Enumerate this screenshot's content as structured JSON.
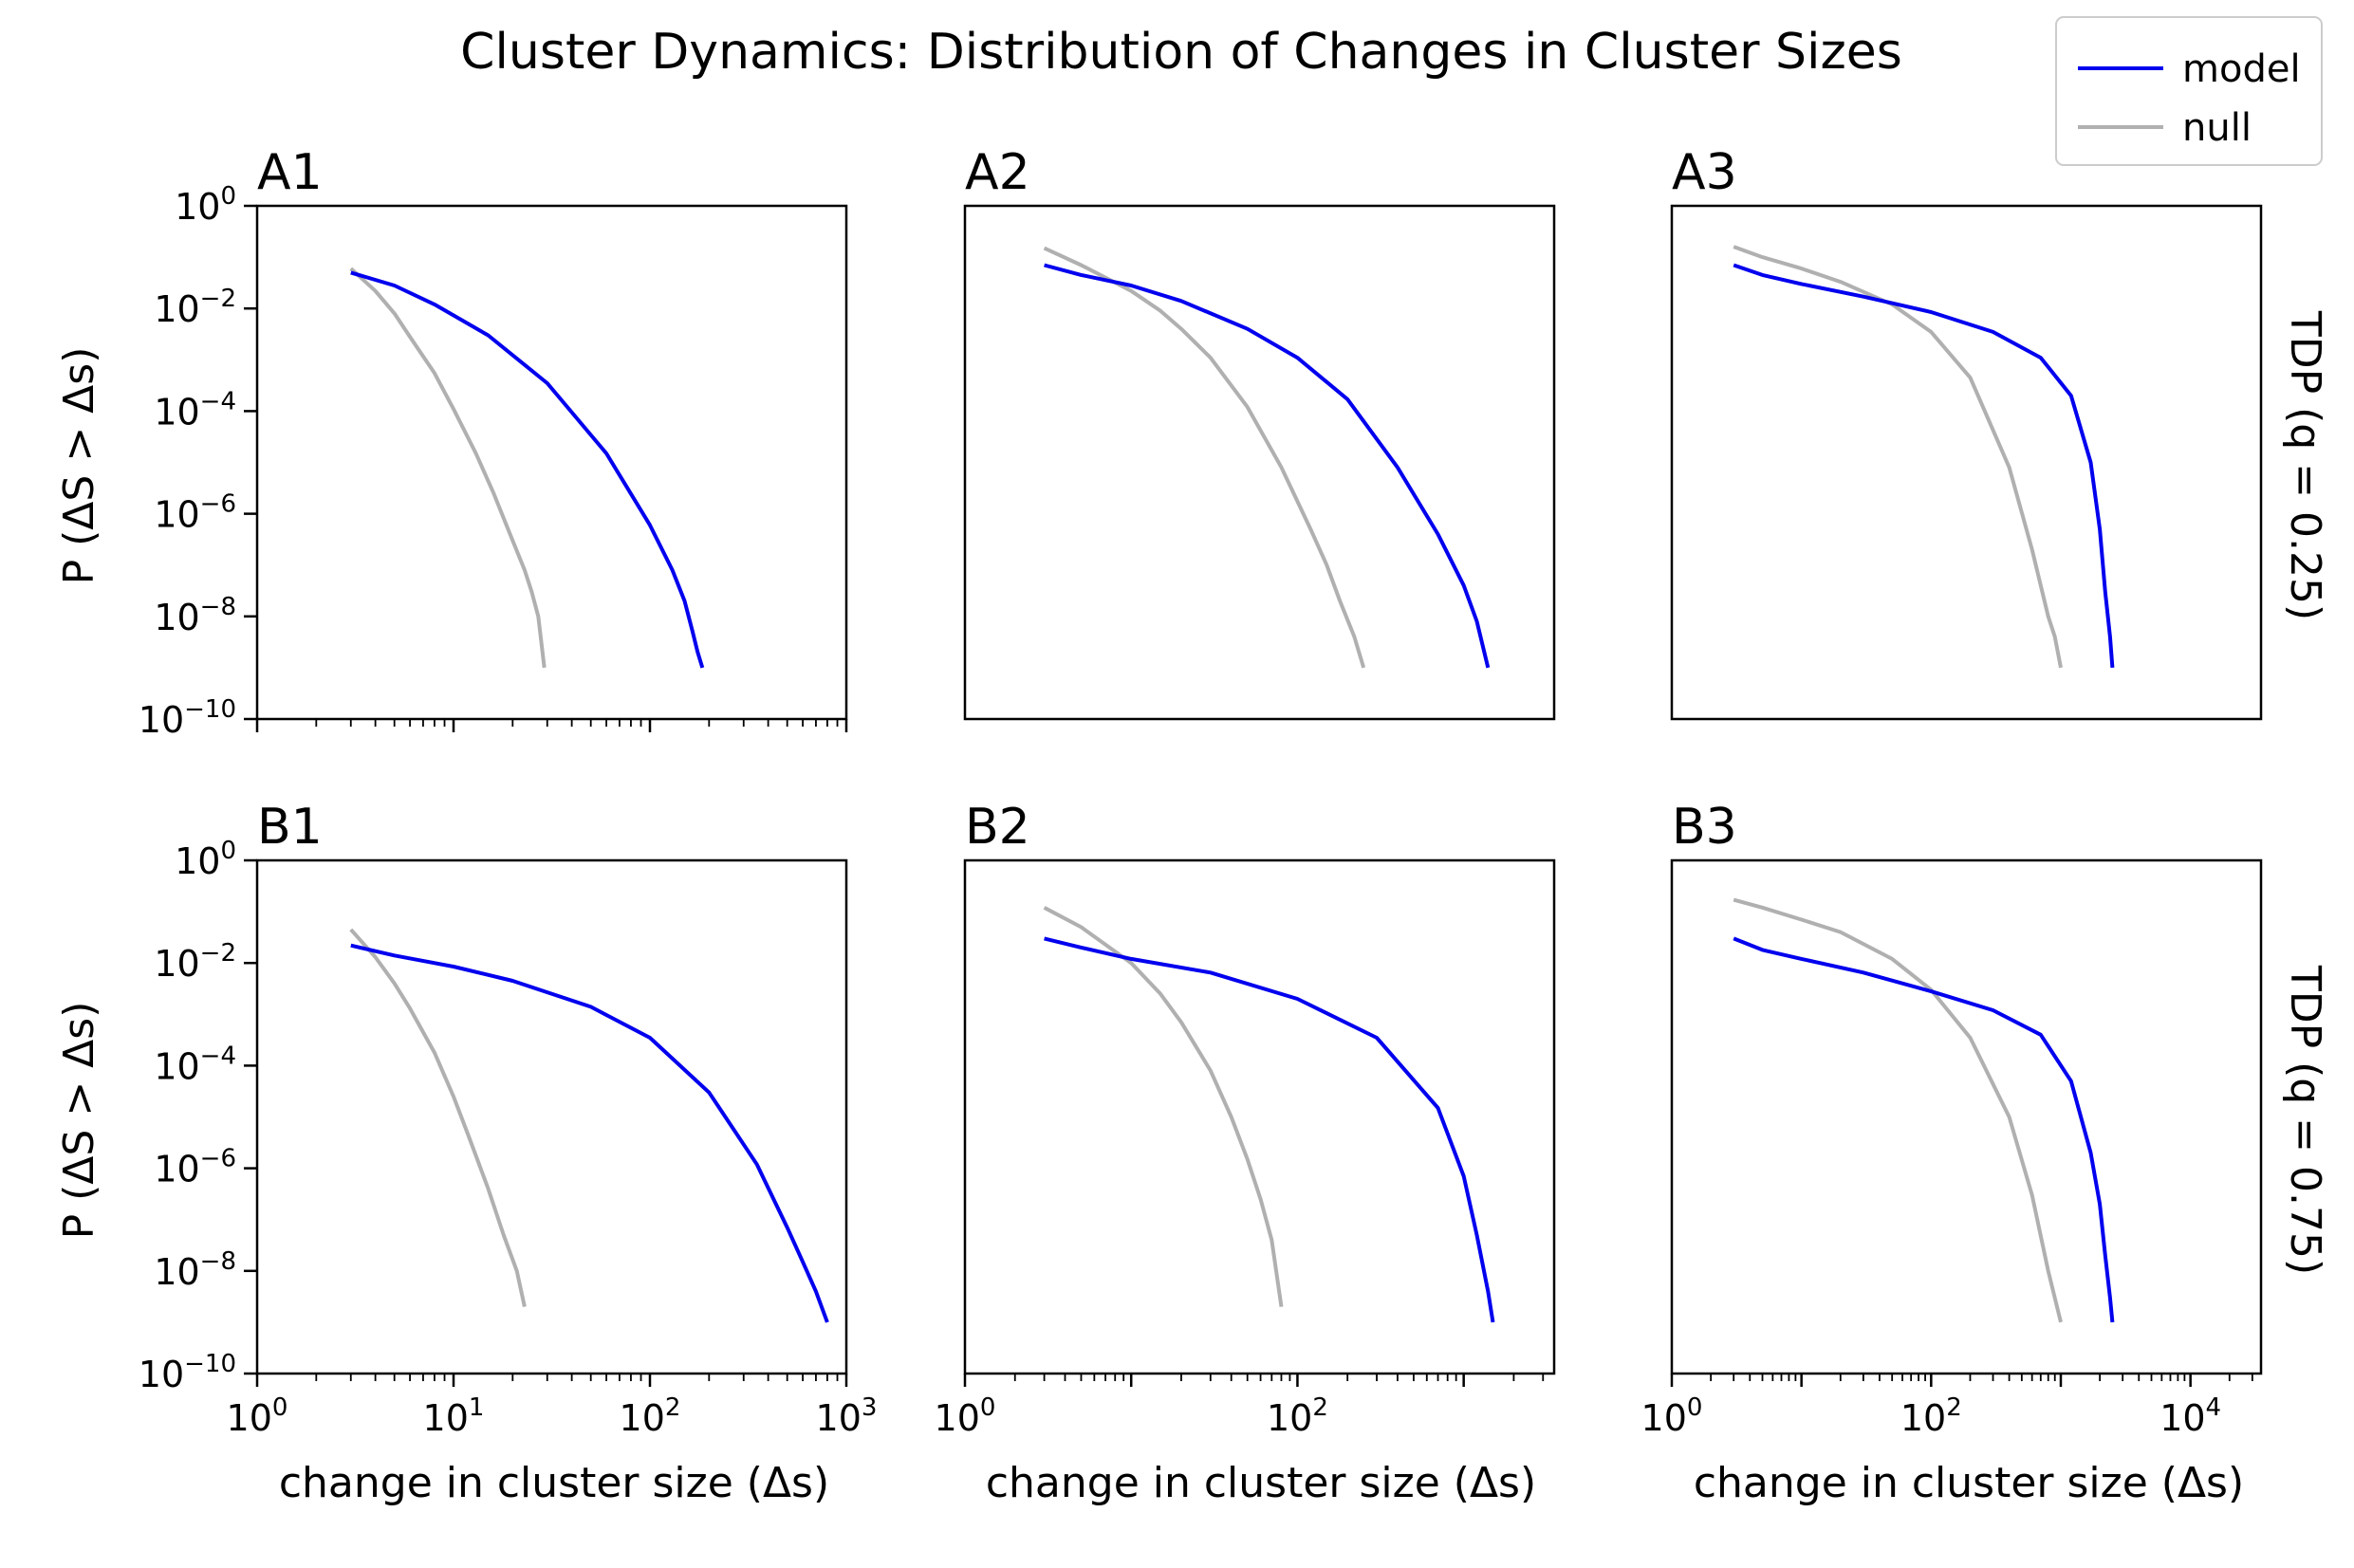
{
  "title": "Cluster Dynamics: Distribution of Changes in Cluster Sizes",
  "legend": {
    "placement": "top-right",
    "entries": [
      {
        "name": "model",
        "color": "#0000ee"
      },
      {
        "name": "null",
        "color": "#b0b0b0"
      }
    ]
  },
  "row_labels": [
    "TDP (q = 0.25)",
    "TDP (q = 0.75)"
  ],
  "ylabel": "P (ΔS > Δs)",
  "xlabel": "change in cluster size (Δs)",
  "chart_data": [
    {
      "type": "line",
      "panel": "A1",
      "xscale": "log",
      "yscale": "log",
      "xlim": [
        1,
        1000
      ],
      "ylim": [
        1e-10,
        1
      ],
      "xticks": [],
      "show_x_ticks": true,
      "show_y_ticks": true,
      "yticks": [
        {
          "base": "10",
          "exp": "0",
          "value": 1
        },
        {
          "base": "10",
          "exp": "−2",
          "value": 0.01
        },
        {
          "base": "10",
          "exp": "−4",
          "value": 0.0001
        },
        {
          "base": "10",
          "exp": "−6",
          "value": 1e-06
        },
        {
          "base": "10",
          "exp": "−8",
          "value": 1e-08
        },
        {
          "base": "10",
          "exp": "−10",
          "value": 1e-10
        }
      ],
      "series": [
        {
          "name": "model",
          "color": "#0000ee",
          "x": [
            3,
            5,
            8,
            15,
            30,
            60,
            100,
            130,
            150,
            165,
            175,
            185
          ],
          "y": [
            0.05,
            0.028,
            0.012,
            0.003,
            0.00035,
            1.5e-05,
            6e-07,
            8e-08,
            2e-08,
            5e-09,
            2e-09,
            1e-09
          ]
        },
        {
          "name": "null",
          "color": "#b0b0b0",
          "x": [
            3,
            4,
            5,
            6,
            8,
            10,
            13,
            16,
            20,
            23,
            25,
            27,
            29
          ],
          "y": [
            0.06,
            0.022,
            0.008,
            0.0028,
            0.00055,
            0.00011,
            1.5e-05,
            2.5e-06,
            3e-07,
            8e-08,
            3e-08,
            1e-08,
            1e-09
          ]
        }
      ]
    },
    {
      "type": "line",
      "panel": "A2",
      "xscale": "log",
      "yscale": "log",
      "xlim": [
        1,
        3500
      ],
      "ylim": [
        1e-10,
        1
      ],
      "xticks": [],
      "show_x_ticks": false,
      "show_y_ticks": false,
      "yticks": [],
      "series": [
        {
          "name": "model",
          "color": "#0000ee",
          "x": [
            3,
            5,
            10,
            20,
            50,
            100,
            200,
            400,
            700,
            1000,
            1200,
            1400
          ],
          "y": [
            0.07,
            0.045,
            0.028,
            0.014,
            0.004,
            0.0011,
            0.00017,
            8e-06,
            4e-07,
            4e-08,
            8e-09,
            1e-09
          ]
        },
        {
          "name": "null",
          "color": "#b0b0b0",
          "x": [
            3,
            5,
            10,
            15,
            20,
            30,
            50,
            80,
            120,
            150,
            180,
            220,
            250
          ],
          "y": [
            0.15,
            0.07,
            0.022,
            0.009,
            0.004,
            0.0011,
            0.00012,
            8e-06,
            5e-07,
            1e-07,
            2e-08,
            4e-09,
            1e-09
          ]
        }
      ]
    },
    {
      "type": "line",
      "panel": "A3",
      "xscale": "log",
      "yscale": "log",
      "xlim": [
        1,
        35000
      ],
      "ylim": [
        1e-10,
        1
      ],
      "xticks": [],
      "show_x_ticks": false,
      "show_y_ticks": false,
      "yticks": [],
      "series": [
        {
          "name": "model",
          "color": "#0000ee",
          "x": [
            3,
            5,
            10,
            30,
            100,
            300,
            700,
            1200,
            1700,
            2000,
            2200,
            2400,
            2500
          ],
          "y": [
            0.07,
            0.045,
            0.03,
            0.017,
            0.0085,
            0.0035,
            0.0011,
            0.0002,
            1e-05,
            5e-07,
            3e-08,
            4e-09,
            1e-09
          ]
        },
        {
          "name": "null",
          "color": "#b0b0b0",
          "x": [
            3,
            5,
            10,
            20,
            50,
            100,
            200,
            400,
            600,
            800,
            900,
            1000
          ],
          "y": [
            0.16,
            0.1,
            0.06,
            0.033,
            0.012,
            0.0035,
            0.00045,
            8e-06,
            2e-07,
            1e-08,
            4e-09,
            1e-09
          ]
        }
      ]
    },
    {
      "type": "line",
      "panel": "B1",
      "xscale": "log",
      "yscale": "log",
      "xlim": [
        1,
        1000
      ],
      "ylim": [
        1e-10,
        1
      ],
      "show_x_ticks": true,
      "show_y_ticks": true,
      "xticks": [
        {
          "base": "10",
          "exp": "0",
          "value": 1
        },
        {
          "base": "10",
          "exp": "1",
          "value": 10
        },
        {
          "base": "10",
          "exp": "2",
          "value": 100
        },
        {
          "base": "10",
          "exp": "3",
          "value": 1000
        }
      ],
      "yticks": [
        {
          "base": "10",
          "exp": "0",
          "value": 1
        },
        {
          "base": "10",
          "exp": "−2",
          "value": 0.01
        },
        {
          "base": "10",
          "exp": "−4",
          "value": 0.0001
        },
        {
          "base": "10",
          "exp": "−6",
          "value": 1e-06
        },
        {
          "base": "10",
          "exp": "−8",
          "value": 1e-08
        },
        {
          "base": "10",
          "exp": "−10",
          "value": 1e-10
        }
      ],
      "series": [
        {
          "name": "model",
          "color": "#0000ee",
          "x": [
            3,
            5,
            10,
            20,
            50,
            100,
            200,
            350,
            500,
            600,
            700,
            800
          ],
          "y": [
            0.022,
            0.014,
            0.0085,
            0.0045,
            0.0014,
            0.00035,
            3e-05,
            1.2e-06,
            7e-08,
            1.5e-08,
            4e-09,
            1e-09
          ]
        },
        {
          "name": "null",
          "color": "#b0b0b0",
          "x": [
            3,
            4,
            5,
            6,
            8,
            10,
            12,
            15,
            18,
            21,
            23
          ],
          "y": [
            0.045,
            0.013,
            0.004,
            0.0013,
            0.00018,
            2.5e-05,
            4e-06,
            4e-07,
            5e-08,
            1e-08,
            2e-09
          ]
        }
      ]
    },
    {
      "type": "line",
      "panel": "B2",
      "xscale": "log",
      "yscale": "log",
      "xlim": [
        1,
        3500
      ],
      "ylim": [
        1e-10,
        1
      ],
      "show_x_ticks": true,
      "show_y_ticks": false,
      "yticks": [],
      "xticks": [
        {
          "base": "10",
          "exp": "0",
          "value": 1
        },
        {
          "base": "10",
          "exp": "2",
          "value": 100
        }
      ],
      "series": [
        {
          "name": "model",
          "color": "#0000ee",
          "x": [
            3,
            5,
            10,
            30,
            100,
            300,
            700,
            1000,
            1200,
            1400,
            1500
          ],
          "y": [
            0.03,
            0.02,
            0.012,
            0.0065,
            0.002,
            0.00035,
            1.5e-05,
            7e-07,
            5e-08,
            4e-09,
            1e-09
          ]
        },
        {
          "name": "null",
          "color": "#b0b0b0",
          "x": [
            3,
            5,
            10,
            15,
            20,
            30,
            40,
            50,
            60,
            70,
            80
          ],
          "y": [
            0.12,
            0.05,
            0.01,
            0.0025,
            0.0007,
            8e-05,
            1e-05,
            1.5e-06,
            2.5e-07,
            4e-08,
            2e-09
          ]
        }
      ]
    },
    {
      "type": "line",
      "panel": "B3",
      "xscale": "log",
      "yscale": "log",
      "xlim": [
        1,
        35000
      ],
      "ylim": [
        1e-10,
        1
      ],
      "show_x_ticks": true,
      "show_y_ticks": false,
      "yticks": [],
      "xticks": [
        {
          "base": "10",
          "exp": "0",
          "value": 1
        },
        {
          "base": "10",
          "exp": "2",
          "value": 100
        },
        {
          "base": "10",
          "exp": "4",
          "value": 10000
        }
      ],
      "series": [
        {
          "name": "model",
          "color": "#0000ee",
          "x": [
            3,
            5,
            10,
            30,
            100,
            300,
            700,
            1200,
            1700,
            2000,
            2200,
            2400,
            2500
          ],
          "y": [
            0.03,
            0.018,
            0.012,
            0.0065,
            0.0028,
            0.0012,
            0.0004,
            5e-05,
            2e-06,
            2e-07,
            2e-08,
            3e-09,
            1e-09
          ]
        },
        {
          "name": "null",
          "color": "#b0b0b0",
          "x": [
            3,
            5,
            10,
            20,
            50,
            100,
            200,
            400,
            600,
            800,
            1000
          ],
          "y": [
            0.17,
            0.12,
            0.07,
            0.04,
            0.012,
            0.003,
            0.00035,
            1e-05,
            3e-07,
            1e-08,
            1e-09
          ]
        }
      ]
    }
  ]
}
